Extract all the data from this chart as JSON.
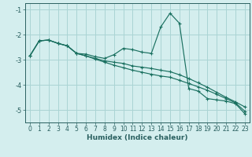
{
  "xlabel": "Humidex (Indice chaleur)",
  "bg_color": "#d4eeee",
  "grid_color": "#aad4d4",
  "line_color": "#1a7060",
  "x_values": [
    0,
    1,
    2,
    3,
    4,
    5,
    6,
    7,
    8,
    9,
    10,
    11,
    12,
    13,
    14,
    15,
    16,
    17,
    18,
    19,
    20,
    21,
    22,
    23
  ],
  "line1_y": [
    -2.85,
    -2.25,
    -2.22,
    -2.35,
    -2.45,
    -2.75,
    -2.78,
    -2.88,
    -2.95,
    -2.8,
    -2.55,
    -2.6,
    -2.7,
    -2.75,
    -1.7,
    -1.15,
    -1.55,
    -4.15,
    -4.25,
    -4.55,
    -4.6,
    -4.65,
    -4.75,
    -5.15
  ],
  "line2_y": [
    -2.85,
    -2.25,
    -2.22,
    -2.35,
    -2.45,
    -2.75,
    -2.85,
    -2.95,
    -3.05,
    -3.1,
    -3.15,
    -3.25,
    -3.3,
    -3.35,
    -3.42,
    -3.48,
    -3.6,
    -3.75,
    -3.92,
    -4.1,
    -4.3,
    -4.5,
    -4.68,
    -4.88
  ],
  "line3_y": [
    -2.85,
    -2.25,
    -2.22,
    -2.35,
    -2.45,
    -2.75,
    -2.85,
    -2.98,
    -3.1,
    -3.22,
    -3.32,
    -3.42,
    -3.5,
    -3.58,
    -3.65,
    -3.7,
    -3.82,
    -3.95,
    -4.08,
    -4.22,
    -4.38,
    -4.55,
    -4.72,
    -5.05
  ],
  "ylim": [
    -5.5,
    -0.75
  ],
  "xlim": [
    -0.5,
    23.5
  ],
  "yticks": [
    -5,
    -4,
    -3,
    -2,
    -1
  ],
  "xticks": [
    0,
    1,
    2,
    3,
    4,
    5,
    6,
    7,
    8,
    9,
    10,
    11,
    12,
    13,
    14,
    15,
    16,
    17,
    18,
    19,
    20,
    21,
    22,
    23
  ],
  "tick_color": "#2a6060",
  "xlabel_fontsize": 6.5,
  "tick_fontsize": 5.5
}
